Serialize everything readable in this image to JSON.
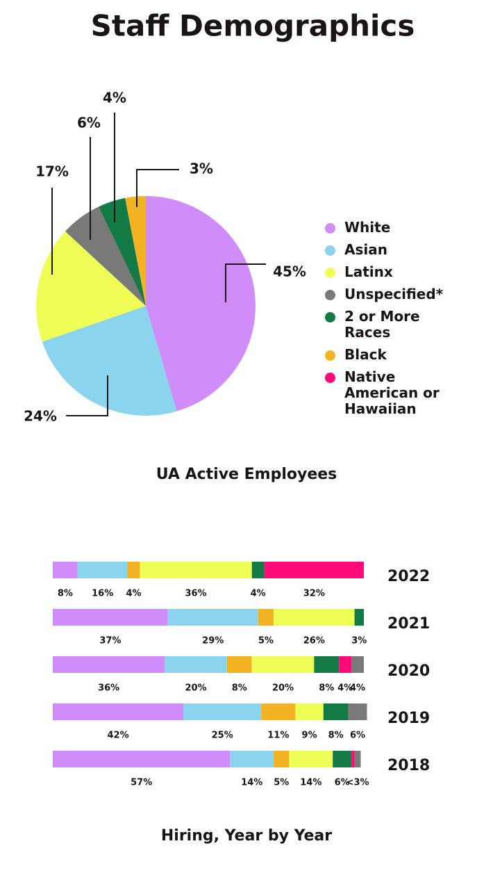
{
  "title": "Staff Demographics",
  "chart_data": [
    {
      "type": "pie",
      "title": "UA Active Employees",
      "categories": [
        "White",
        "Asian",
        "Latinx",
        "Unspecified*",
        "2 or More Races",
        "Black",
        "Native American or Hawaiian"
      ],
      "values": [
        45,
        24,
        17,
        6,
        4,
        3,
        0
      ],
      "value_labels": [
        "45%",
        "24%",
        "17%",
        "6%",
        "4%",
        "3%",
        null
      ],
      "colors": [
        "#d08cf8",
        "#8ad4ee",
        "#eefe57",
        "#7b7878",
        "#147a45",
        "#f3b325",
        "#ff0a78"
      ]
    },
    {
      "type": "stacked-bar",
      "title": "Hiring, Year by Year",
      "categories": [
        "2022",
        "2021",
        "2020",
        "2019",
        "2018"
      ],
      "xlim": [
        0,
        100
      ],
      "series": [
        {
          "color": "#d08cf8",
          "values": [
            8,
            37,
            36,
            42,
            57
          ],
          "value_labels": [
            "8%",
            "37%",
            "36%",
            "42%",
            "57%"
          ]
        },
        {
          "color": "#8ad4ee",
          "values": [
            16,
            29,
            20,
            25,
            14
          ],
          "value_labels": [
            "16%",
            "29%",
            "20%",
            "25%",
            "14%"
          ]
        },
        {
          "color": "#f3b325",
          "values": [
            4,
            5,
            8,
            11,
            5
          ],
          "value_labels": [
            "4%",
            "5%",
            "8%",
            "11%",
            "5%"
          ]
        },
        {
          "color": "#eefe57",
          "values": [
            36,
            26,
            20,
            9,
            14
          ],
          "value_labels": [
            "36%",
            "26%",
            "20%",
            "9%",
            "14%"
          ]
        },
        {
          "color": "#147a45",
          "values": [
            4,
            3,
            8,
            8,
            6
          ],
          "value_labels": [
            "4%",
            "3%",
            "8%",
            "8%",
            "6%"
          ]
        },
        {
          "color": "#ff0a78",
          "values": [
            32,
            0,
            4,
            0,
            1
          ],
          "value_labels": [
            "32%",
            null,
            "4%",
            null,
            null
          ]
        },
        {
          "color": "#7b7878",
          "values": [
            0,
            0,
            4,
            6,
            2
          ],
          "value_labels": [
            null,
            null,
            "4%",
            "6%",
            "<3%"
          ]
        }
      ]
    }
  ]
}
